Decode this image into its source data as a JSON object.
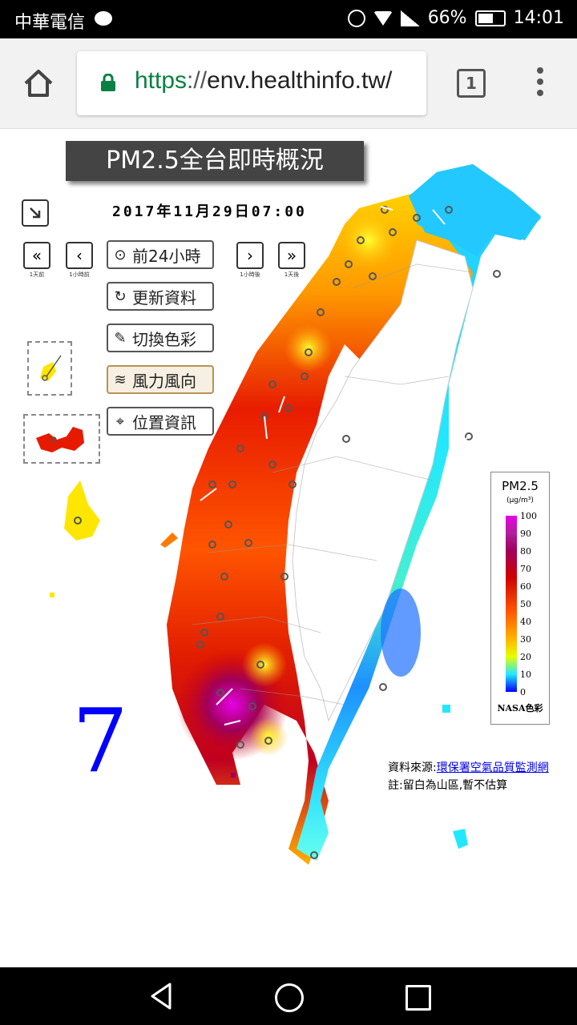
{
  "status_bar": {
    "carrier": "中華電信",
    "battery": "66%",
    "battery_level": 0.66,
    "time": "14:01"
  },
  "browser": {
    "url_scheme": "https",
    "url_sep": "://",
    "url_host": "env.healthinfo.tw/",
    "tab_count": "1"
  },
  "page": {
    "title": "PM2.5全台即時概況",
    "datetime": "2017年11月29日07:00",
    "nav": [
      {
        "symbol": "«",
        "label": "1天前"
      },
      {
        "symbol": "‹",
        "label": "1小時前"
      },
      {
        "symbol": "›",
        "label": "1小時後"
      },
      {
        "symbol": "»",
        "label": "1天後"
      }
    ],
    "buttons": {
      "prev24": "前24小時",
      "refresh": "更新資料",
      "color": "切換色彩",
      "wind": "風力風向",
      "location": "位置資訊"
    },
    "big_number": "7",
    "legend": {
      "title": "PM2.5",
      "unit": "(μg/m³)",
      "ticks": [
        "100",
        "90",
        "80",
        "70",
        "60",
        "50",
        "40",
        "30",
        "20",
        "10",
        "0"
      ],
      "footer": "NASA色彩"
    },
    "source_label": "資料來源:",
    "source_link": "環保署空氣品質監測網",
    "note": "註:留白為山區,暫不估算"
  },
  "colors": {
    "magenta": "#e600e6",
    "dark_red": "#a0003c",
    "red": "#e21e00",
    "orange": "#ff7a00",
    "yellow": "#ffe600",
    "cyan": "#22e8ff",
    "blue": "#0055ff"
  }
}
